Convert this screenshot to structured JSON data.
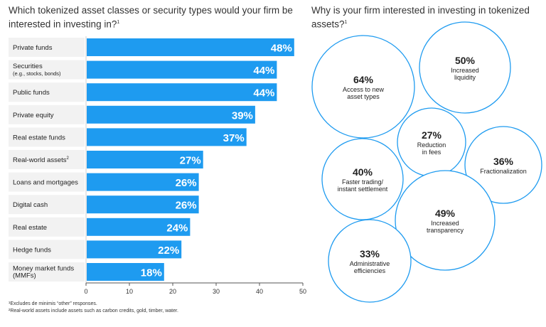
{
  "left_title": {
    "text": "Which tokenized asset classes or security types would your firm be interested in investing in?",
    "marker": "1"
  },
  "right_title": {
    "text": "Why is your firm interested in investing in tokenized assets?",
    "marker": "1"
  },
  "footnotes": [
    "¹Excludes de minimis “other” responses.",
    "²Real-world assets include assets such as carbon credits, gold, timber, water."
  ],
  "colors": {
    "bar": "#1e9bf0",
    "row_bg": "#f2f2f2",
    "circle_stroke": "#1e9bf0",
    "axis": "#555555"
  },
  "chart_data": [
    {
      "type": "bar",
      "orientation": "horizontal",
      "categories": [
        "Private funds",
        "Securities",
        "Public funds",
        "Private equity",
        "Real estate funds",
        "Real-world assets",
        "Loans and mortgages",
        "Digital cash",
        "Real estate",
        "Hedge funds",
        "Money market funds"
      ],
      "category_sublabels": [
        "",
        "(e.g., stocks, bonds)",
        "",
        "",
        "",
        "",
        "",
        "",
        "",
        "",
        "(MMFs)"
      ],
      "category_markers": [
        "",
        "",
        "",
        "",
        "",
        "2",
        "",
        "",
        "",
        "",
        ""
      ],
      "values": [
        48,
        44,
        44,
        39,
        37,
        27,
        26,
        26,
        24,
        22,
        18
      ],
      "data_labels": [
        "48%",
        "44%",
        "44%",
        "39%",
        "37%",
        "27%",
        "26%",
        "26%",
        "24%",
        "22%",
        "18%"
      ],
      "xlim": [
        0,
        50
      ],
      "xticks": [
        0,
        10,
        20,
        30,
        40,
        50
      ],
      "xtick_labels": [
        "0",
        "10",
        "20",
        "30",
        "40",
        "50"
      ]
    },
    {
      "type": "bubble",
      "items": [
        {
          "value": "64%",
          "label": [
            "Access to new",
            "asset types"
          ]
        },
        {
          "value": "50%",
          "label": [
            "Increased",
            "liquidity"
          ]
        },
        {
          "value": "27%",
          "label": [
            "Reduction",
            "in fees"
          ]
        },
        {
          "value": "36%",
          "label": [
            "Fractionalization"
          ]
        },
        {
          "value": "40%",
          "label": [
            "Faster trading/",
            "instant settlement"
          ]
        },
        {
          "value": "49%",
          "label": [
            "Increased",
            "transparency"
          ]
        },
        {
          "value": "33%",
          "label": [
            "Administrative",
            "efficiencies"
          ]
        }
      ]
    }
  ]
}
